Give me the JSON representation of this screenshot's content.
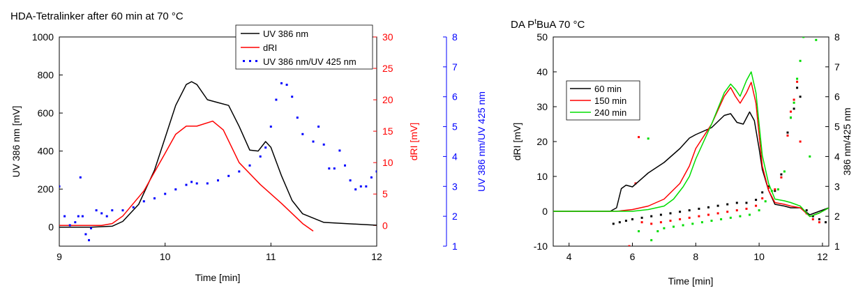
{
  "chart_data": [
    {
      "type": "line",
      "title": "HDA-Tetralinker after 60 min at 70 °C",
      "xlabel": "Time [min]",
      "xlim": [
        9,
        12
      ],
      "xticks": [
        "9",
        "10",
        "11",
        "12"
      ],
      "axes": {
        "left": {
          "label": "UV 386 nm [mV]",
          "lim": [
            -100,
            1000
          ],
          "ticks": [
            "0",
            "200",
            "400",
            "600",
            "800",
            "1000"
          ],
          "color": "#000000"
        },
        "right1": {
          "label": "dRI [mV]",
          "lim": [
            -3.3,
            30
          ],
          "ticks": [
            "0",
            "5",
            "10",
            "15",
            "20",
            "25",
            "30"
          ],
          "color": "#ff0000"
        },
        "right2": {
          "label": "UV 386 nm/UV 425 nm",
          "lim": [
            1,
            8
          ],
          "ticks": [
            "1",
            "2",
            "3",
            "4",
            "5",
            "6",
            "7",
            "8"
          ],
          "color": "#0000ff"
        }
      },
      "legend": {
        "position": "top-right",
        "entries": [
          "UV 386 nm",
          "dRI",
          "UV 386 nm/UV 425 nm"
        ]
      },
      "series": [
        {
          "name": "UV 386 nm",
          "axis": "left",
          "style": "line",
          "color": "#000000",
          "x": [
            9.0,
            9.3,
            9.5,
            9.6,
            9.75,
            9.9,
            10.0,
            10.1,
            10.2,
            10.25,
            10.3,
            10.4,
            10.5,
            10.6,
            10.7,
            10.8,
            10.88,
            10.95,
            11.0,
            11.1,
            11.2,
            11.3,
            11.5,
            12.0
          ],
          "y": [
            0,
            0,
            5,
            30,
            120,
            300,
            470,
            640,
            750,
            765,
            750,
            670,
            655,
            640,
            530,
            405,
            400,
            450,
            420,
            270,
            140,
            70,
            25,
            10
          ]
        },
        {
          "name": "dRI",
          "axis": "right1",
          "style": "line",
          "color": "#ff0000",
          "x": [
            9.0,
            9.4,
            9.5,
            9.6,
            9.8,
            10.0,
            10.1,
            10.2,
            10.3,
            10.45,
            10.55,
            10.7,
            10.9,
            11.1,
            11.3,
            11.4
          ],
          "y": [
            0,
            0,
            0.3,
            1.5,
            5.5,
            11.5,
            14.5,
            15.8,
            15.8,
            16.6,
            15.2,
            10.0,
            6.5,
            3.5,
            0.3,
            -0.9
          ]
        },
        {
          "name": "UV 386 nm/UV 425 nm",
          "axis": "right2",
          "style": "dots",
          "color": "#0000ff",
          "x": [
            9.0,
            9.05,
            9.1,
            9.15,
            9.18,
            9.2,
            9.22,
            9.25,
            9.28,
            9.3,
            9.35,
            9.4,
            9.45,
            9.5,
            9.6,
            9.7,
            9.8,
            9.9,
            10.0,
            10.1,
            10.2,
            10.25,
            10.3,
            10.4,
            10.5,
            10.6,
            10.7,
            10.8,
            10.9,
            10.95,
            11.0,
            11.05,
            11.1,
            11.15,
            11.2,
            11.25,
            11.3,
            11.4,
            11.45,
            11.5,
            11.55,
            11.6,
            11.65,
            11.7,
            11.75,
            11.8,
            11.85,
            11.9,
            11.95,
            12.0
          ],
          "y": [
            3.0,
            2.0,
            1.7,
            1.8,
            2.0,
            3.3,
            2.0,
            1.4,
            1.2,
            1.6,
            2.2,
            2.1,
            2.0,
            2.2,
            2.2,
            2.3,
            2.5,
            2.6,
            2.75,
            2.9,
            3.05,
            3.15,
            3.1,
            3.1,
            3.2,
            3.35,
            3.5,
            3.7,
            4.0,
            4.3,
            5.0,
            5.9,
            6.45,
            6.4,
            6.0,
            5.3,
            4.75,
            4.5,
            5.0,
            4.4,
            3.6,
            3.6,
            4.2,
            3.7,
            3.2,
            2.9,
            3.0,
            3.0,
            3.3,
            3.5
          ]
        }
      ]
    },
    {
      "type": "line",
      "title": "DA PᵗBuA 70 °C",
      "title_prefix": "DA P",
      "title_sup": "t",
      "title_suffix": "BuA 70 °C",
      "xlabel": "Time [min]",
      "xlim": [
        3.5,
        12.2
      ],
      "xticks": [
        "4",
        "6",
        "8",
        "10",
        "12"
      ],
      "axes": {
        "left": {
          "label": "dRI [mV]",
          "lim": [
            -10,
            50
          ],
          "ticks": [
            "-10",
            "0",
            "10",
            "20",
            "30",
            "40",
            "50"
          ],
          "color": "#000000"
        },
        "right": {
          "label": "386 nm/425 nm",
          "lim": [
            1,
            8
          ],
          "ticks": [
            "1",
            "2",
            "3",
            "4",
            "5",
            "6",
            "7",
            "8"
          ],
          "color": "#000000"
        }
      },
      "legend": {
        "position": "top-left",
        "entries": [
          "60 min",
          "150 min",
          "240 min"
        ]
      },
      "series": [
        {
          "name": "60 min",
          "color": "#000000",
          "x": [
            3.5,
            5.3,
            5.5,
            5.65,
            5.8,
            6.0,
            6.5,
            7.0,
            7.5,
            7.8,
            8.0,
            8.5,
            8.9,
            9.1,
            9.3,
            9.5,
            9.7,
            9.85,
            10.0,
            10.1,
            10.3,
            10.5,
            10.8,
            11.0,
            11.3,
            11.6,
            11.9,
            12.2
          ],
          "y": [
            0,
            0,
            1,
            6.5,
            7.5,
            7,
            11,
            14,
            18,
            21,
            22,
            24,
            27.5,
            28,
            25.5,
            25,
            28.5,
            26,
            18,
            12,
            6,
            2,
            1.5,
            1,
            1,
            -1,
            0,
            1
          ]
        },
        {
          "name": "150 min",
          "color": "#ff0000",
          "x": [
            3.5,
            5.5,
            6.0,
            6.5,
            7.0,
            7.5,
            7.8,
            8.0,
            8.5,
            8.9,
            9.1,
            9.25,
            9.4,
            9.6,
            9.75,
            9.9,
            10.0,
            10.1,
            10.3,
            10.5,
            10.8,
            11.0,
            11.3,
            11.6,
            11.9,
            12.2
          ],
          "y": [
            0,
            0,
            0.5,
            1.5,
            3.5,
            8,
            13,
            18,
            25,
            33,
            35.5,
            33,
            31,
            34,
            37,
            31,
            22,
            13,
            6,
            2.5,
            2,
            1.5,
            1,
            -1.5,
            -0.5,
            1
          ]
        },
        {
          "name": "240 min",
          "color": "#00dd00",
          "x": [
            3.5,
            6.0,
            6.5,
            7.0,
            7.3,
            7.6,
            7.8,
            8.0,
            8.5,
            8.9,
            9.1,
            9.25,
            9.4,
            9.6,
            9.75,
            9.9,
            10.0,
            10.1,
            10.3,
            10.5,
            10.8,
            11.0,
            11.3,
            11.6,
            11.9,
            12.2
          ],
          "y": [
            0,
            0,
            0.5,
            1.5,
            3.5,
            7,
            10,
            15,
            25,
            34,
            36.5,
            35,
            33,
            37.5,
            40,
            34,
            25,
            16,
            8,
            3.5,
            3,
            2.5,
            1.5,
            -1.5,
            -0.5,
            1
          ]
        },
        {
          "name": "60 min ratio",
          "axis": "right",
          "style": "dots",
          "color": "#000000",
          "x": [
            5.4,
            5.6,
            5.8,
            6.0,
            6.3,
            6.6,
            6.9,
            7.2,
            7.5,
            7.8,
            8.1,
            8.4,
            8.7,
            9.0,
            9.3,
            9.6,
            9.9,
            10.1,
            10.3,
            10.5,
            10.7,
            10.9,
            11.0,
            11.1,
            11.2,
            11.3,
            11.5,
            11.7,
            11.9,
            12.1
          ],
          "y": [
            1.75,
            1.8,
            1.85,
            1.9,
            1.95,
            2.0,
            2.05,
            2.1,
            2.15,
            2.2,
            2.25,
            2.3,
            2.35,
            2.4,
            2.45,
            2.45,
            2.55,
            2.8,
            3.0,
            2.85,
            3.4,
            4.8,
            5.3,
            5.6,
            6.3,
            6.0,
            2.2,
            2.0,
            1.9,
            1.8
          ]
        },
        {
          "name": "150 min ratio",
          "axis": "right",
          "style": "dots",
          "color": "#ff0000",
          "x": [
            5.9,
            6.1,
            6.2,
            6.3,
            6.6,
            6.9,
            7.2,
            7.5,
            7.8,
            8.1,
            8.4,
            8.7,
            9.0,
            9.3,
            9.6,
            9.9,
            10.1,
            10.3,
            10.5,
            10.7,
            10.9,
            11.0,
            11.1,
            11.2,
            11.3,
            11.5,
            11.7,
            11.9
          ],
          "y": [
            1.0,
            3.1,
            4.65,
            1.8,
            1.75,
            1.8,
            1.85,
            1.9,
            1.95,
            2.0,
            2.05,
            2.1,
            2.15,
            2.2,
            2.25,
            2.35,
            2.6,
            2.95,
            2.9,
            3.3,
            4.7,
            5.5,
            5.9,
            6.5,
            4.5,
            2.1,
            1.9,
            1.8
          ]
        },
        {
          "name": "240 min ratio",
          "axis": "right",
          "style": "dots",
          "color": "#00dd00",
          "x": [
            6.2,
            6.5,
            6.6,
            6.8,
            7.0,
            7.3,
            7.6,
            7.9,
            8.2,
            8.5,
            8.8,
            9.1,
            9.4,
            9.7,
            10.0,
            10.2,
            10.4,
            10.6,
            10.8,
            11.0,
            11.1,
            11.2,
            11.3,
            11.4,
            11.6,
            11.8
          ],
          "y": [
            1.5,
            4.6,
            1.2,
            1.5,
            1.6,
            1.65,
            1.7,
            1.75,
            1.8,
            1.85,
            1.9,
            1.95,
            2.0,
            2.05,
            2.2,
            2.5,
            2.85,
            2.9,
            3.5,
            5.3,
            5.8,
            6.6,
            7.2,
            8.0,
            4.0,
            7.9
          ]
        }
      ]
    }
  ]
}
